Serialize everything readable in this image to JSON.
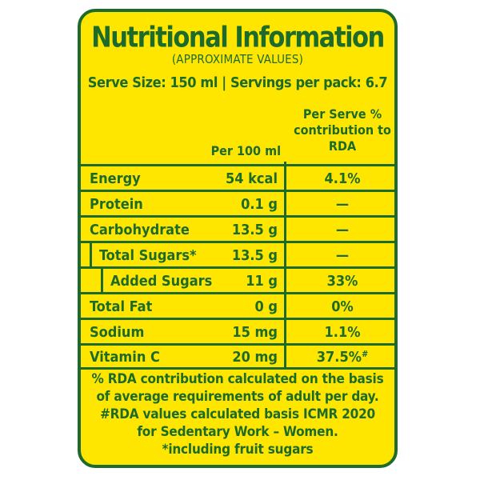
{
  "title": "Nutritional Information",
  "subtitle": "(APPROXIMATE VALUES)",
  "serve_line": "Serve Size: 150 ml | Servings per pack: 6.7",
  "headers": {
    "per100": "Per 100 ml",
    "rda_line1": "Per Serve %",
    "rda_line2": "contribution to",
    "rda_line3": "RDA"
  },
  "rows": [
    {
      "name": "Energy",
      "per100": "54 kcal",
      "rda": "4.1%"
    },
    {
      "name": "Protein",
      "per100": "0.1 g",
      "rda": "—"
    },
    {
      "name": "Carbohydrate",
      "per100": "13.5 g",
      "rda": "—"
    },
    {
      "name": "Total Sugars*",
      "per100": "13.5 g",
      "rda": "—"
    },
    {
      "name": "Added Sugars",
      "per100": "11 g",
      "rda": "33%"
    },
    {
      "name": "Total Fat",
      "per100": "0 g",
      "rda": "0%"
    },
    {
      "name": "Sodium",
      "per100": "15 mg",
      "rda": "1.1%"
    },
    {
      "name": "Vitamin C",
      "per100": "20 mg",
      "rda": "37.5%",
      "rda_mark": "#"
    }
  ],
  "footer": [
    "% RDA contribution calculated on the basis",
    "of average requirements of adult per day.",
    "#RDA values calculated basis ICMR 2020",
    "for Sedentary Work – Women.",
    "*including fruit sugars"
  ],
  "colors": {
    "background": "#ffe600",
    "text": "#1d6b2a"
  }
}
